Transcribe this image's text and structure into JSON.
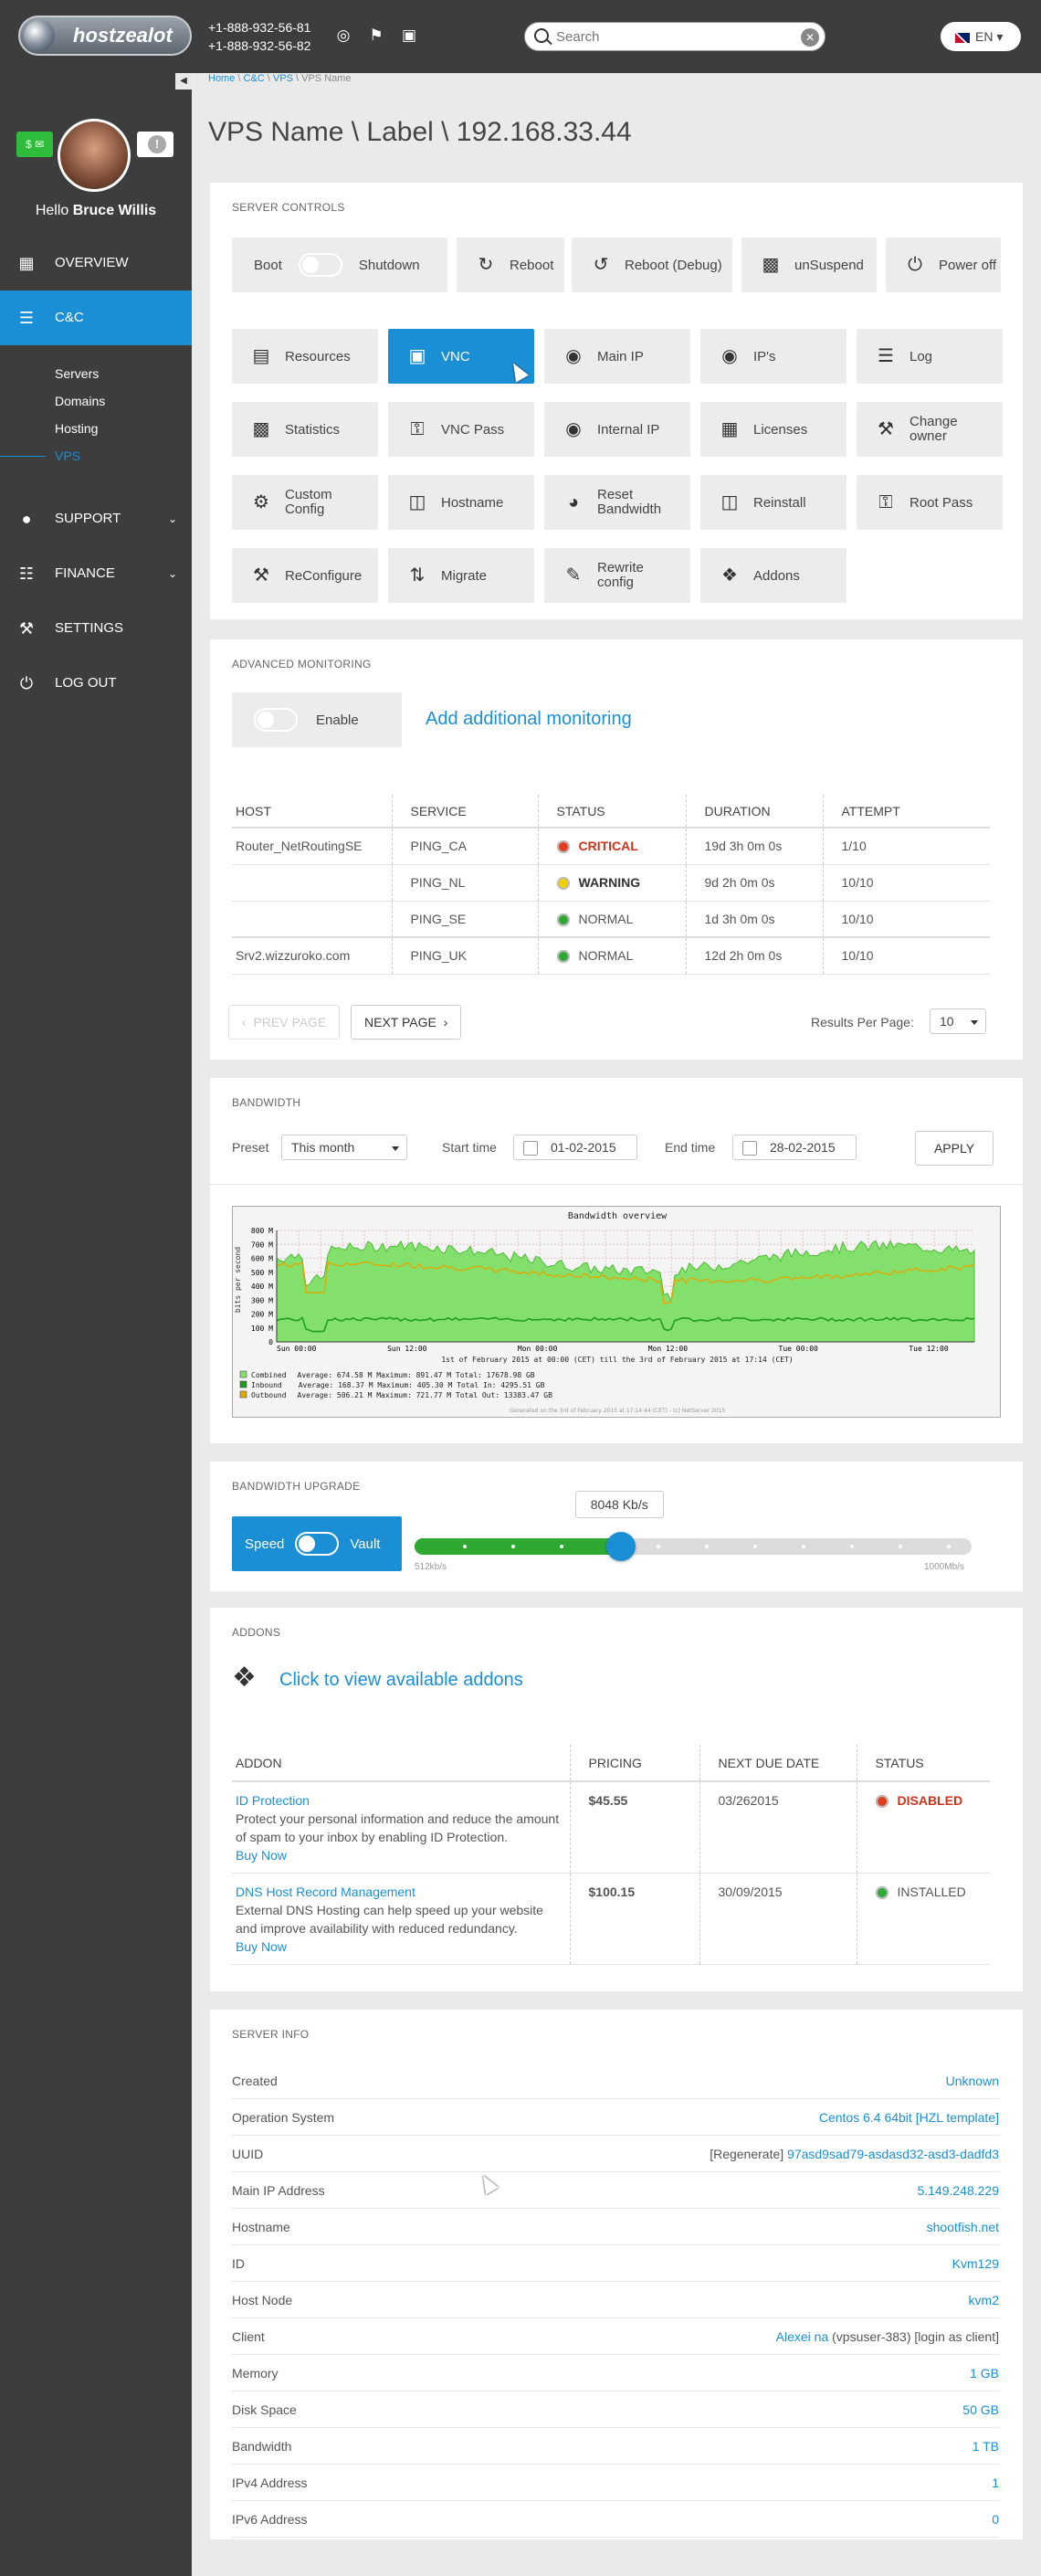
{
  "topbar": {
    "logo_text": "hostzealot",
    "phone1": "+1-888-932-56-81",
    "phone2": "+1-888-932-56-82",
    "search_placeholder": "Search",
    "lang": "EN"
  },
  "sidebar": {
    "hello": "Hello",
    "user_name": "Bruce Willis",
    "nav": [
      {
        "label": "OVERVIEW"
      },
      {
        "label": "C&C"
      },
      {
        "label": "SUPPORT"
      },
      {
        "label": "FINANCE"
      },
      {
        "label": "SETTINGS"
      },
      {
        "label": "LOG OUT"
      }
    ],
    "sub": [
      {
        "label": "Servers"
      },
      {
        "label": "Domains"
      },
      {
        "label": "Hosting"
      },
      {
        "label": "VPS"
      }
    ]
  },
  "breadcrumb": {
    "home": "Home",
    "cc": "C&C",
    "vps": "VPS",
    "current": "VPS Name",
    "sep": " \\ "
  },
  "page_title": "VPS Name \\ Label \\ 192.168.33.44",
  "server_controls": {
    "title": "SERVER CONTROLS",
    "boot": "Boot",
    "shutdown": "Shutdown",
    "reboot": "Reboot",
    "reboot_debug": "Reboot (Debug)",
    "unsuspend": "unSuspend",
    "power_off": "Power off",
    "buttons": [
      "Resources",
      "VNC",
      "Main IP",
      "IP's",
      "Log",
      "Statistics",
      "VNC Pass",
      "Internal IP",
      "Licenses",
      "Change owner",
      "Custom Config",
      "Hostname",
      "Reset Bandwidth",
      "Reinstall",
      "Root Pass",
      "ReConfigure",
      "Migrate",
      "Rewrite config",
      "Addons"
    ]
  },
  "monitoring": {
    "title": "ADVANCED MONITORING",
    "enable": "Enable",
    "add_link": "Add additional monitoring",
    "headers": [
      "HOST",
      "SERVICE",
      "STATUS",
      "DURATION",
      "ATTEMPT"
    ],
    "rows": [
      {
        "host": "Router_NetRoutingSE",
        "service": "PING_CA",
        "status": "CRITICAL",
        "duration": "19d 3h 0m 0s",
        "attempt": "1/10"
      },
      {
        "host": "",
        "service": "PING_NL",
        "status": "WARNING",
        "duration": "9d 2h 0m 0s",
        "attempt": "10/10"
      },
      {
        "host": "",
        "service": "PING_SE",
        "status": "NORMAL",
        "duration": "1d 3h 0m 0s",
        "attempt": "10/10"
      },
      {
        "host": "Srv2.wizzuroko.com",
        "service": "PING_UK",
        "status": "NORMAL",
        "duration": "12d 2h 0m 0s",
        "attempt": "10/10"
      }
    ],
    "prev": "PREV PAGE",
    "next": "NEXT PAGE",
    "rpp_label": "Results Per Page:",
    "rpp_value": "10"
  },
  "bandwidth": {
    "title": "BANDWIDTH",
    "preset_label": "Preset",
    "preset_value": "This month",
    "start_label": "Start time",
    "start_value": "01-02-2015",
    "end_label": "End time",
    "end_value": "28-02-2015",
    "apply": "APPLY",
    "chart_title": "Bandwidth overview",
    "ylabel": "bits per second",
    "yticks": [
      "800 M",
      "700 M",
      "600 M",
      "500 M",
      "400 M",
      "300 M",
      "200 M",
      "100 M",
      "0"
    ],
    "xticks": [
      "Sun 00:00",
      "Sun 12:00",
      "Mon 00:00",
      "Mon 12:00",
      "Tue 00:00",
      "Tue 12:00"
    ],
    "subtitle": "1st of February 2015 at 00:00 (CET) till the 3rd of February 2015 at 17:14 (CET)",
    "legend": [
      {
        "name": "Combined",
        "stats": "Average:  674.58 M   Maximum:  891.47 M   Total:     17678.98 GB"
      },
      {
        "name": "Inbound",
        "stats": "Average:  168.37 M   Maximum:  405.30 M   Total In:   4295.51 GB"
      },
      {
        "name": "Outbound",
        "stats": "Average:  506.21 M   Maximum:  721.77 M   Total Out:  13383.47 GB"
      }
    ],
    "footer": "Generated on the 3rd of February 2015 at 17:14:44 (CET) - (c) NetServer 2015"
  },
  "upgrade": {
    "title": "BANDWIDTH UPGRADE",
    "speed": "Speed",
    "vault": "Vault",
    "value_label": "8048 Kb/s",
    "value_fraction": 0.37,
    "min_label": "512kb/s",
    "max_label": "1000Mb/s"
  },
  "addons": {
    "title": "ADDONS",
    "link": "Click to view available addons",
    "headers": [
      "ADDON",
      "PRICING",
      "NEXT DUE DATE",
      "STATUS"
    ],
    "rows": [
      {
        "name": "ID Protection",
        "desc": "Protect your personal information and reduce the amount of spam to your inbox by enabling ID Protection.",
        "buy": "Buy Now",
        "price": "$45.55",
        "due": "03/262015",
        "status": "DISABLED"
      },
      {
        "name": "DNS Host Record Management",
        "desc": "External DNS Hosting can help speed up your website and improve availability with reduced redundancy.",
        "buy": "Buy Now",
        "price": "$100.15",
        "due": "30/09/2015",
        "status": "INSTALLED"
      }
    ]
  },
  "server_info": {
    "title": "SERVER INFO",
    "rows": [
      {
        "label": "Created",
        "value": "Unknown"
      },
      {
        "label": "Operation System",
        "value": "Centos 6.4 64bit [HZL template]"
      },
      {
        "label": "UUID",
        "prefix": "[Regenerate]",
        "value": "97asd9sad79-asdasd32-asd3-dadfd3"
      },
      {
        "label": "Main IP Address",
        "value": "5.149.248.229"
      },
      {
        "label": "Hostname",
        "value": "shootfish.net"
      },
      {
        "label": "ID",
        "value": "Kvm129"
      },
      {
        "label": "Host Node",
        "value": "kvm2"
      },
      {
        "label": "Client",
        "value": "Alexei na",
        "suffix": "(vpsuser-383) [login as client]"
      },
      {
        "label": "Memory",
        "value": "1 GB"
      },
      {
        "label": "Disk Space",
        "value": "50 GB"
      },
      {
        "label": "Bandwidth",
        "value": "1 TB"
      },
      {
        "label": "IPv4 Address",
        "value": "1"
      },
      {
        "label": "IPv6 Address",
        "value": "0"
      }
    ]
  }
}
